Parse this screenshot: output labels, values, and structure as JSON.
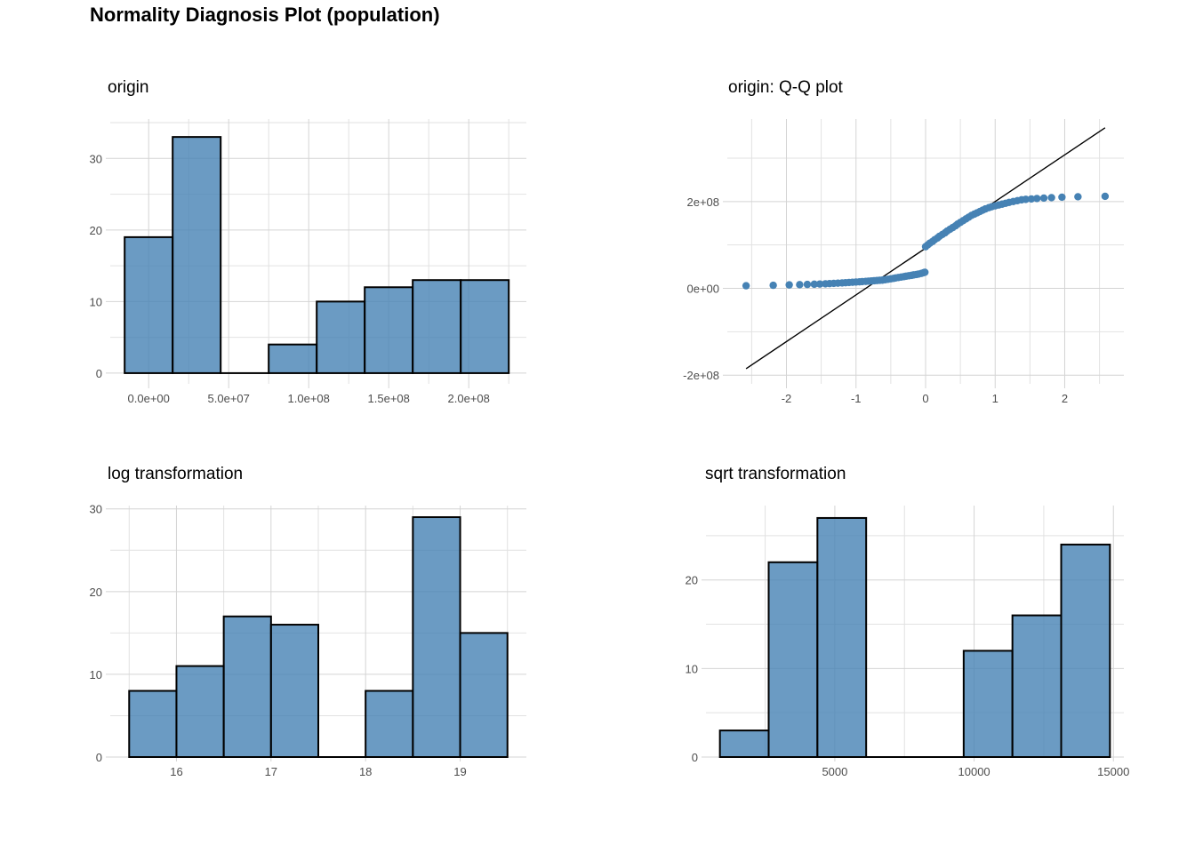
{
  "title": "Normality Diagnosis Plot (population)",
  "colors": {
    "bar_fill": "#4682b4",
    "bar_stroke": "#000000",
    "point": "#4682b4",
    "grid": "#d4d4d4"
  },
  "chart_data": [
    {
      "type": "bar",
      "id": "origin",
      "title": "origin",
      "bin_width": 30000000,
      "bins": [
        {
          "x0": -15000000,
          "x1": 15000000,
          "count": 19
        },
        {
          "x0": 15000000,
          "x1": 45000000,
          "count": 33
        },
        {
          "x0": 45000000,
          "x1": 75000000,
          "count": 0
        },
        {
          "x0": 75000000,
          "x1": 105000000,
          "count": 4
        },
        {
          "x0": 105000000,
          "x1": 135000000,
          "count": 10
        },
        {
          "x0": 135000000,
          "x1": 165000000,
          "count": 12
        },
        {
          "x0": 165000000,
          "x1": 195000000,
          "count": 13
        },
        {
          "x0": 195000000,
          "x1": 225000000,
          "count": 13
        }
      ],
      "xlim": [
        -24000000,
        236000000
      ],
      "ylim": [
        -1.5,
        35.5
      ],
      "x_ticks": [
        0,
        50000000,
        100000000,
        150000000,
        200000000
      ],
      "x_tick_labels": [
        "0.0e+00",
        "5.0e+07",
        "1.0e+08",
        "1.5e+08",
        "2.0e+08"
      ],
      "y_ticks": [
        0,
        10,
        20,
        30
      ],
      "y_tick_labels": [
        "0",
        "10",
        "20",
        "30"
      ],
      "grid": true
    },
    {
      "type": "scatter",
      "id": "qq",
      "title": "origin: Q-Q plot",
      "xlim": [
        -2.85,
        2.85
      ],
      "ylim": [
        -220000000,
        390000000
      ],
      "x_ticks": [
        -2,
        -1,
        0,
        1,
        2
      ],
      "x_tick_labels": [
        "-2",
        "-1",
        "0",
        "1",
        "2"
      ],
      "y_ticks": [
        -200000000,
        0,
        200000000
      ],
      "y_tick_labels": [
        "-2e+08",
        "0e+00",
        "2e+08"
      ],
      "reference_line": {
        "x": [
          -2.58,
          2.58
        ],
        "y": [
          -185000000,
          370000000
        ]
      },
      "points": [
        [
          -2.58,
          6000000
        ],
        [
          -2.19,
          7000000
        ],
        [
          -1.96,
          8000000
        ],
        [
          -1.81,
          8500000
        ],
        [
          -1.7,
          9000000
        ],
        [
          -1.6,
          9500000
        ],
        [
          -1.52,
          10000000
        ],
        [
          -1.44,
          10500000
        ],
        [
          -1.38,
          11000000
        ],
        [
          -1.32,
          11500000
        ],
        [
          -1.26,
          12000000
        ],
        [
          -1.2,
          12500000
        ],
        [
          -1.15,
          13000000
        ],
        [
          -1.1,
          13500000
        ],
        [
          -1.05,
          14000000
        ],
        [
          -1.0,
          14500000
        ],
        [
          -0.95,
          15000000
        ],
        [
          -0.91,
          15500000
        ],
        [
          -0.86,
          16000000
        ],
        [
          -0.82,
          16500000
        ],
        [
          -0.78,
          17000000
        ],
        [
          -0.74,
          17500000
        ],
        [
          -0.7,
          18000000
        ],
        [
          -0.66,
          18500000
        ],
        [
          -0.62,
          19000000
        ],
        [
          -0.58,
          20000000
        ],
        [
          -0.54,
          21000000
        ],
        [
          -0.5,
          22000000
        ],
        [
          -0.46,
          23000000
        ],
        [
          -0.43,
          24000000
        ],
        [
          -0.39,
          25000000
        ],
        [
          -0.35,
          26000000
        ],
        [
          -0.31,
          27000000
        ],
        [
          -0.28,
          28000000
        ],
        [
          -0.24,
          29000000
        ],
        [
          -0.2,
          30000000
        ],
        [
          -0.17,
          31000000
        ],
        [
          -0.13,
          32000000
        ],
        [
          -0.1,
          33000000
        ],
        [
          -0.06,
          34500000
        ],
        [
          -0.03,
          36000000
        ],
        [
          -0.01,
          37000000
        ],
        [
          0.0,
          96000000
        ],
        [
          0.03,
          100000000
        ],
        [
          0.06,
          104000000
        ],
        [
          0.1,
          108000000
        ],
        [
          0.13,
          112000000
        ],
        [
          0.17,
          116000000
        ],
        [
          0.2,
          120000000
        ],
        [
          0.24,
          124000000
        ],
        [
          0.28,
          128000000
        ],
        [
          0.31,
          132000000
        ],
        [
          0.35,
          136000000
        ],
        [
          0.39,
          140000000
        ],
        [
          0.43,
          144000000
        ],
        [
          0.46,
          148000000
        ],
        [
          0.5,
          152000000
        ],
        [
          0.54,
          156000000
        ],
        [
          0.58,
          160000000
        ],
        [
          0.62,
          164000000
        ],
        [
          0.66,
          168000000
        ],
        [
          0.7,
          171000000
        ],
        [
          0.74,
          174000000
        ],
        [
          0.78,
          177000000
        ],
        [
          0.82,
          180000000
        ],
        [
          0.86,
          183000000
        ],
        [
          0.91,
          186000000
        ],
        [
          0.95,
          188000000
        ],
        [
          1.0,
          190000000
        ],
        [
          1.05,
          192000000
        ],
        [
          1.1,
          194000000
        ],
        [
          1.15,
          196000000
        ],
        [
          1.2,
          198000000
        ],
        [
          1.26,
          200000000
        ],
        [
          1.32,
          202000000
        ],
        [
          1.38,
          204000000
        ],
        [
          1.44,
          205000000
        ],
        [
          1.52,
          206000000
        ],
        [
          1.6,
          207000000
        ],
        [
          1.7,
          208000000
        ],
        [
          1.81,
          209000000
        ],
        [
          1.96,
          210000000
        ],
        [
          2.19,
          211000000
        ],
        [
          2.58,
          212000000
        ]
      ],
      "grid": true
    },
    {
      "type": "bar",
      "id": "log",
      "title": "log transformation",
      "bin_width": 0.5,
      "bins": [
        {
          "x0": 15.5,
          "x1": 16.0,
          "count": 8
        },
        {
          "x0": 16.0,
          "x1": 16.5,
          "count": 11
        },
        {
          "x0": 16.5,
          "x1": 17.0,
          "count": 17
        },
        {
          "x0": 17.0,
          "x1": 17.5,
          "count": 16
        },
        {
          "x0": 17.5,
          "x1": 18.0,
          "count": 0
        },
        {
          "x0": 18.0,
          "x1": 18.5,
          "count": 8
        },
        {
          "x0": 18.5,
          "x1": 19.0,
          "count": 29
        },
        {
          "x0": 19.0,
          "x1": 19.5,
          "count": 15
        }
      ],
      "xlim": [
        15.3,
        19.7
      ],
      "ylim": [
        0,
        30.4
      ],
      "x_ticks": [
        16,
        17,
        18,
        19
      ],
      "x_tick_labels": [
        "16",
        "17",
        "18",
        "19"
      ],
      "y_ticks": [
        0,
        10,
        20,
        30
      ],
      "y_tick_labels": [
        "0",
        "10",
        "20",
        "30"
      ],
      "grid": true
    },
    {
      "type": "bar",
      "id": "sqrt",
      "title": "sqrt transformation",
      "bin_width": 1750,
      "bins": [
        {
          "x0": 875,
          "x1": 2625,
          "count": 3
        },
        {
          "x0": 2625,
          "x1": 4375,
          "count": 22
        },
        {
          "x0": 4375,
          "x1": 6125,
          "count": 27
        },
        {
          "x0": 6125,
          "x1": 7875,
          "count": 0
        },
        {
          "x0": 7875,
          "x1": 9625,
          "count": 0
        },
        {
          "x0": 9625,
          "x1": 11375,
          "count": 12
        },
        {
          "x0": 11375,
          "x1": 13125,
          "count": 16
        },
        {
          "x0": 13125,
          "x1": 14875,
          "count": 24
        }
      ],
      "xlim": [
        375,
        15375
      ],
      "ylim": [
        0,
        28.4
      ],
      "x_ticks": [
        5000,
        10000,
        15000
      ],
      "x_tick_labels": [
        "5000",
        "10000",
        "15000"
      ],
      "y_ticks": [
        0,
        10,
        20
      ],
      "y_tick_labels": [
        "0",
        "10",
        "20"
      ],
      "grid": true
    }
  ]
}
